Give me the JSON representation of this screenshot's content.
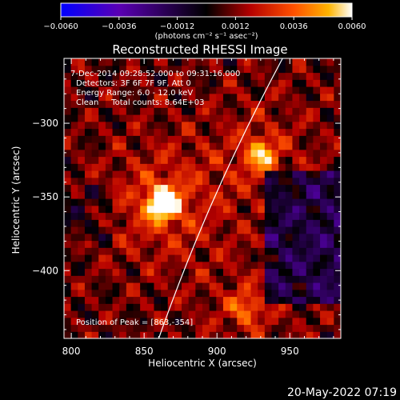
{
  "chart_data": {
    "type": "heatmap",
    "title": "Reconstructed RHESSI Image",
    "xlabel": "Heliocentric X (arcsec)",
    "ylabel": "Heliocentric Y (arcsec)",
    "xlim": [
      795,
      985
    ],
    "ylim": [
      -446,
      -256
    ],
    "x_ticks": [
      800,
      850,
      900,
      950
    ],
    "y_ticks": [
      -300,
      -350,
      -400
    ],
    "x_tick_labels": [
      "800",
      "850",
      "900",
      "950"
    ],
    "y_tick_labels": [
      "−300",
      "−350",
      "−400"
    ],
    "colorbar": {
      "range": [
        -0.006,
        0.006
      ],
      "tick_labels": [
        "−0.0060",
        "−0.0036",
        "−0.0012",
        "0.0012",
        "0.0036",
        "0.0060"
      ],
      "unit_label": "(photons cm⁻² s⁻¹ asec⁻²)",
      "colors": [
        "#0000ff",
        "#5a00b4",
        "#000000",
        "#b40000",
        "#ff5000",
        "#ffb400",
        "#ffffff"
      ]
    },
    "sources": [
      {
        "x": 863,
        "y": -354,
        "peak": 0.006
      },
      {
        "x": 930,
        "y": -321,
        "peak": 0.0035
      },
      {
        "x": 920,
        "y": -425,
        "peak": 0.0025
      }
    ],
    "limb_curve": [
      [
        945,
        -256
      ],
      [
        905,
        -330
      ],
      [
        880,
        -390
      ],
      [
        860,
        -446
      ]
    ],
    "annotations": {
      "date_range": "7-Dec-2014 09:28:52.000 to 09:31:16.000",
      "detectors": "Detectors: 3F 6F 7F 9F, Att 0",
      "energy": "Energy Range: 6.0 - 12.0 keV",
      "method": "Clean     Total counts: 8.64E+03",
      "peak": "Position of Peak = [863,-354]"
    }
  },
  "footer": {
    "timestamp": "20-May-2022 07:19"
  }
}
